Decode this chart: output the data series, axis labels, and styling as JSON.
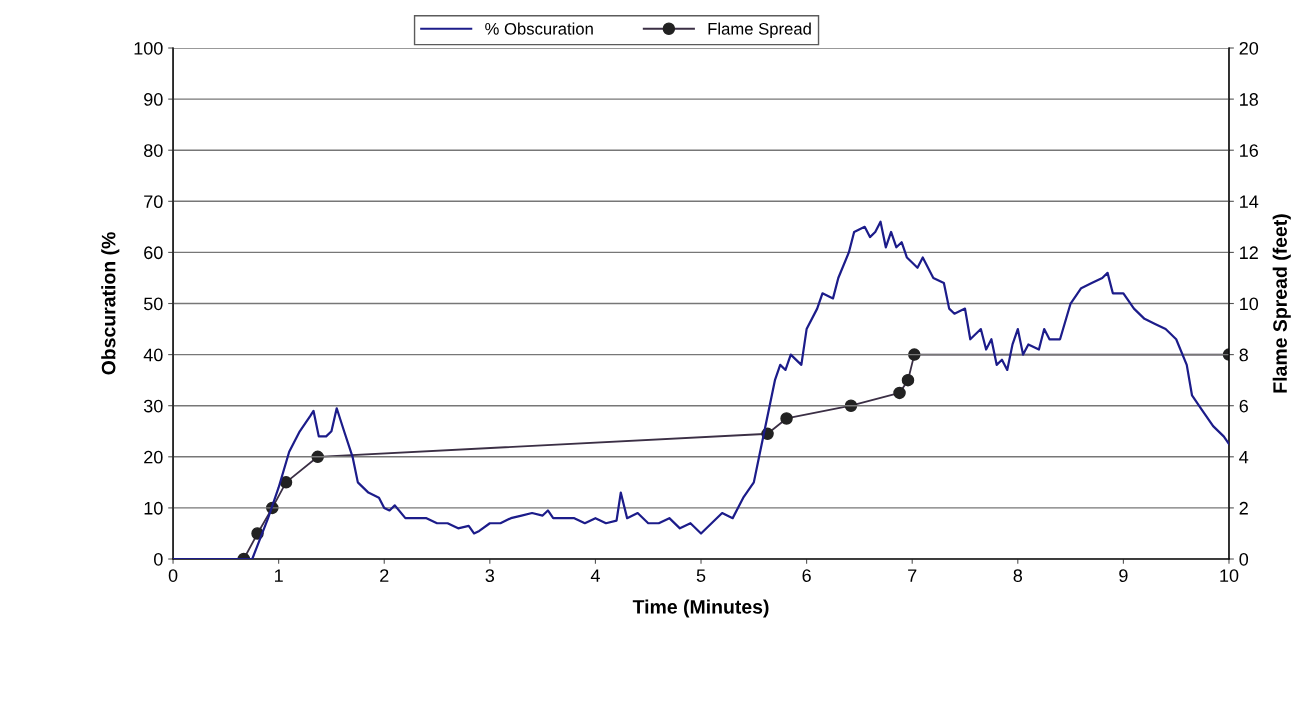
{
  "chart_data": {
    "type": "line",
    "xlabel": "Time (Minutes)",
    "ylabel": "Obscuration (%",
    "y2label": "Flame Spread (feet)",
    "xlim": [
      0,
      10
    ],
    "xticks": [
      0,
      1,
      2,
      3,
      4,
      5,
      6,
      7,
      8,
      9,
      10
    ],
    "ylim": [
      0,
      100
    ],
    "yticks": [
      0,
      10,
      20,
      30,
      40,
      50,
      60,
      70,
      80,
      90,
      100
    ],
    "y2lim": [
      0,
      20
    ],
    "y2ticks": [
      0,
      2,
      4,
      6,
      8,
      10,
      12,
      14,
      16,
      18,
      20
    ],
    "grid": "y",
    "legend": "top",
    "series": [
      {
        "name": "% Obscuration",
        "color": "#1c1c8a",
        "marker": "none",
        "x": [
          0,
          0.7,
          0.75,
          0.9,
          1.0,
          1.1,
          1.2,
          1.3,
          1.33,
          1.38,
          1.45,
          1.5,
          1.55,
          1.62,
          1.7,
          1.75,
          1.85,
          1.95,
          2.0,
          2.05,
          2.1,
          2.2,
          2.4,
          2.5,
          2.6,
          2.7,
          2.8,
          2.85,
          2.9,
          3.0,
          3.1,
          3.2,
          3.3,
          3.4,
          3.5,
          3.55,
          3.6,
          3.8,
          3.9,
          4.0,
          4.1,
          4.2,
          4.24,
          4.3,
          4.4,
          4.5,
          4.6,
          4.7,
          4.8,
          4.9,
          5.0,
          5.1,
          5.2,
          5.3,
          5.4,
          5.5,
          5.55,
          5.6,
          5.65,
          5.7,
          5.75,
          5.8,
          5.85,
          5.95,
          6.0,
          6.1,
          6.15,
          6.25,
          6.3,
          6.4,
          6.45,
          6.55,
          6.6,
          6.65,
          6.7,
          6.75,
          6.8,
          6.85,
          6.9,
          6.95,
          7.05,
          7.1,
          7.2,
          7.3,
          7.35,
          7.4,
          7.5,
          7.55,
          7.65,
          7.7,
          7.75,
          7.8,
          7.85,
          7.9,
          7.95,
          8.0,
          8.05,
          8.1,
          8.2,
          8.25,
          8.3,
          8.4,
          8.5,
          8.6,
          8.7,
          8.8,
          8.85,
          8.9,
          9.0,
          9.1,
          9.2,
          9.3,
          9.4,
          9.5,
          9.6,
          9.65,
          9.75,
          9.85,
          9.95,
          10.0
        ],
        "values": [
          0,
          0,
          0,
          8,
          14,
          21,
          25,
          28,
          29,
          24,
          24,
          25,
          29.5,
          25,
          20,
          15,
          13,
          12,
          10,
          9.5,
          10.5,
          8,
          8,
          7,
          7,
          6,
          6.5,
          5,
          5.5,
          7,
          7,
          8,
          8.5,
          9,
          8.5,
          9.5,
          8,
          8,
          7,
          8,
          7,
          7.5,
          13,
          8,
          9,
          7,
          7,
          8,
          6,
          7,
          5,
          7,
          9,
          8,
          12,
          15,
          20,
          25,
          30,
          35,
          38,
          37,
          40,
          38,
          45,
          49,
          52,
          51,
          55,
          60,
          64,
          65,
          63,
          64,
          66,
          61,
          64,
          61,
          62,
          59,
          57,
          59,
          55,
          54,
          49,
          48,
          49,
          43,
          45,
          41,
          43,
          38,
          39,
          37,
          42,
          45,
          40,
          42,
          41,
          45,
          43,
          43,
          50,
          53,
          54,
          55,
          56,
          52,
          52,
          49,
          47,
          46,
          45,
          43,
          38,
          32,
          29,
          26,
          24,
          22.5
        ]
      },
      {
        "name": "Flame Spread",
        "color": "#3b2f45",
        "marker": "circle",
        "axis": "y2",
        "x": [
          0.67,
          0.8,
          0.94,
          1.07,
          1.37,
          5.63,
          5.81,
          6.42,
          6.88,
          6.96,
          7.02,
          10.0
        ],
        "values": [
          0,
          1,
          2,
          3,
          4,
          4.9,
          5.5,
          6,
          6.5,
          7,
          8,
          8
        ]
      }
    ]
  }
}
